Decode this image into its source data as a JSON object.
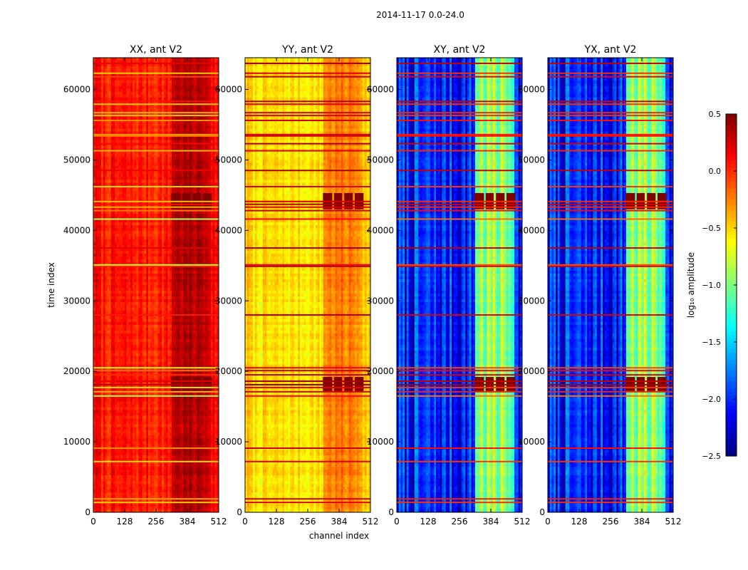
{
  "figure": {
    "suptitle": "2014-11-17 0.0-24.0"
  },
  "chart_data": {
    "type": "heatmap",
    "panels": [
      {
        "title": "XX, ant V2",
        "product": "XX",
        "base_log_amplitude": 0.05
      },
      {
        "title": "YY, ant V2",
        "product": "YY",
        "base_log_amplitude": -0.55
      },
      {
        "title": "XY, ant V2",
        "product": "XY",
        "base_log_amplitude": -2.05
      },
      {
        "title": "YX, ant V2",
        "product": "YX",
        "base_log_amplitude": -2.05
      }
    ],
    "xlabel": "channel index",
    "ylabel": "time index",
    "xlim": [
      0,
      512
    ],
    "ylim": [
      0,
      64500
    ],
    "xticks": [
      0,
      128,
      256,
      384,
      512
    ],
    "xtick_labels": [
      "0",
      "128",
      "256",
      "384",
      "512"
    ],
    "yticks": [
      0,
      10000,
      20000,
      30000,
      40000,
      50000,
      60000
    ],
    "ytick_labels": [
      "0",
      "10000",
      "20000",
      "30000",
      "40000",
      "50000",
      "60000"
    ],
    "colorbar": {
      "label": "log₁₀ amplitude",
      "range": [
        -2.5,
        0.5
      ],
      "ticks": [
        0.5,
        0.0,
        -0.5,
        -1.0,
        -1.5,
        -2.0,
        -2.5
      ],
      "tick_labels": [
        "0.5",
        "0.0",
        "−0.5",
        "−1.0",
        "−1.5",
        "−2.0",
        "−2.5"
      ],
      "colormap": "jet"
    },
    "hot_blocks": {
      "channels": [
        [
          318,
          356
        ],
        [
          363,
          396
        ],
        [
          405,
          440
        ],
        [
          448,
          484
        ]
      ],
      "time_ranges": [
        [
          17200,
          19200
        ],
        [
          43000,
          45300
        ]
      ],
      "log_amplitude": 0.5
    },
    "flagged_rows": [
      1400,
      1900,
      7200,
      9100,
      16500,
      17100,
      17700,
      18100,
      18600,
      19500,
      20100,
      20500,
      28000,
      34900,
      35100,
      37500,
      41600,
      42800,
      43300,
      43700,
      44100,
      46200,
      48500,
      51300,
      52300,
      53400,
      53600,
      55600,
      56300,
      56700,
      57900,
      58300,
      61800,
      62300,
      63700
    ],
    "colors": {
      "background": "#ffffff",
      "axes": "#000000",
      "jet_low": "#00007f",
      "jet_high": "#7f0000"
    }
  }
}
